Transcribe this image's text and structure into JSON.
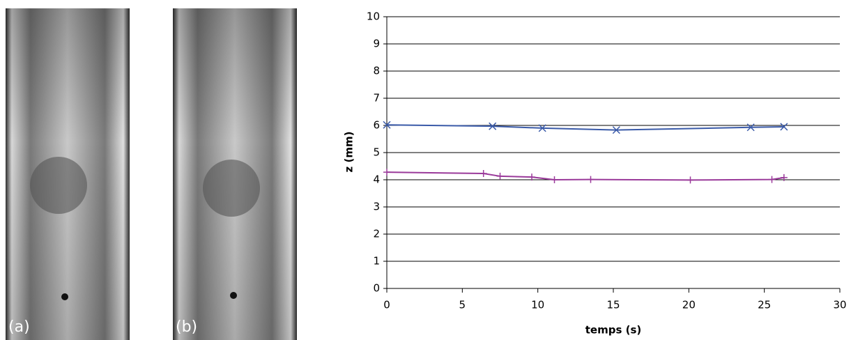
{
  "panels": [
    "(a)",
    "(b)"
  ],
  "chart_data": {
    "type": "line",
    "x_label": "temps (s)",
    "y_label": "z (mm)",
    "xlim": [
      0,
      30
    ],
    "xticks": [
      0,
      5,
      10,
      15,
      20,
      25,
      30
    ],
    "ylim": [
      0,
      10
    ],
    "yticks": [
      0,
      1,
      2,
      3,
      4,
      5,
      6,
      7,
      8,
      9,
      10
    ],
    "grid": true,
    "series": [
      {
        "color": "#3a5aa8",
        "marker": "x",
        "x": [
          0,
          7,
          10.3,
          15.2,
          24.1,
          26.3
        ],
        "values": [
          6.02,
          5.97,
          5.9,
          5.83,
          5.93,
          5.95
        ]
      },
      {
        "color": "#9a3a9a",
        "marker": "+",
        "x": [
          0,
          6.4,
          7.5,
          9.6,
          11.1,
          13.5,
          20.1,
          25.5,
          26.3
        ],
        "values": [
          4.28,
          4.23,
          4.13,
          4.1,
          4.0,
          4.01,
          3.99,
          4.01,
          4.08
        ]
      }
    ]
  }
}
